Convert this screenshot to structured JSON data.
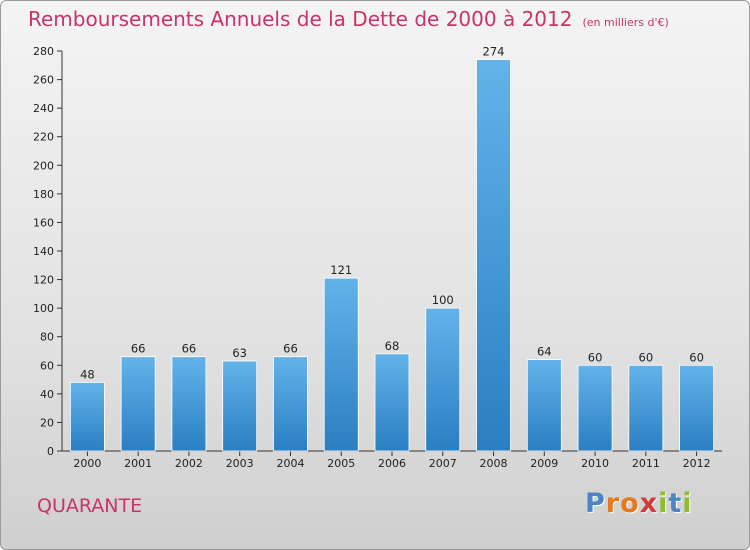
{
  "title": "Remboursements Annuels de la Dette de 2000 à 2012",
  "unit": "(en milliers d'€)",
  "commune": "QUARANTE",
  "logo": {
    "letters": [
      "P",
      "r",
      "o",
      "x",
      "i",
      "t",
      "i"
    ],
    "colors": [
      "#4a86c5",
      "#e6781e",
      "#e6781e",
      "#d43c3c",
      "#8dbd2a",
      "#4a86c5",
      "#8dbd2a"
    ]
  },
  "colors": {
    "title": "#c8336b",
    "bar_top": "#63b3ea",
    "bar_bottom": "#2a7fc2"
  },
  "chart_data": {
    "type": "bar",
    "categories": [
      "2000",
      "2001",
      "2002",
      "2003",
      "2004",
      "2005",
      "2006",
      "2007",
      "2008",
      "2009",
      "2010",
      "2011",
      "2012"
    ],
    "values": [
      48,
      66,
      66,
      63,
      66,
      121,
      68,
      100,
      274,
      64,
      60,
      60,
      60
    ],
    "ylim": [
      0,
      280
    ],
    "yticks": [
      0,
      20,
      40,
      60,
      80,
      100,
      120,
      140,
      160,
      180,
      200,
      220,
      240,
      260,
      280
    ],
    "grid": false,
    "legend": "none"
  }
}
